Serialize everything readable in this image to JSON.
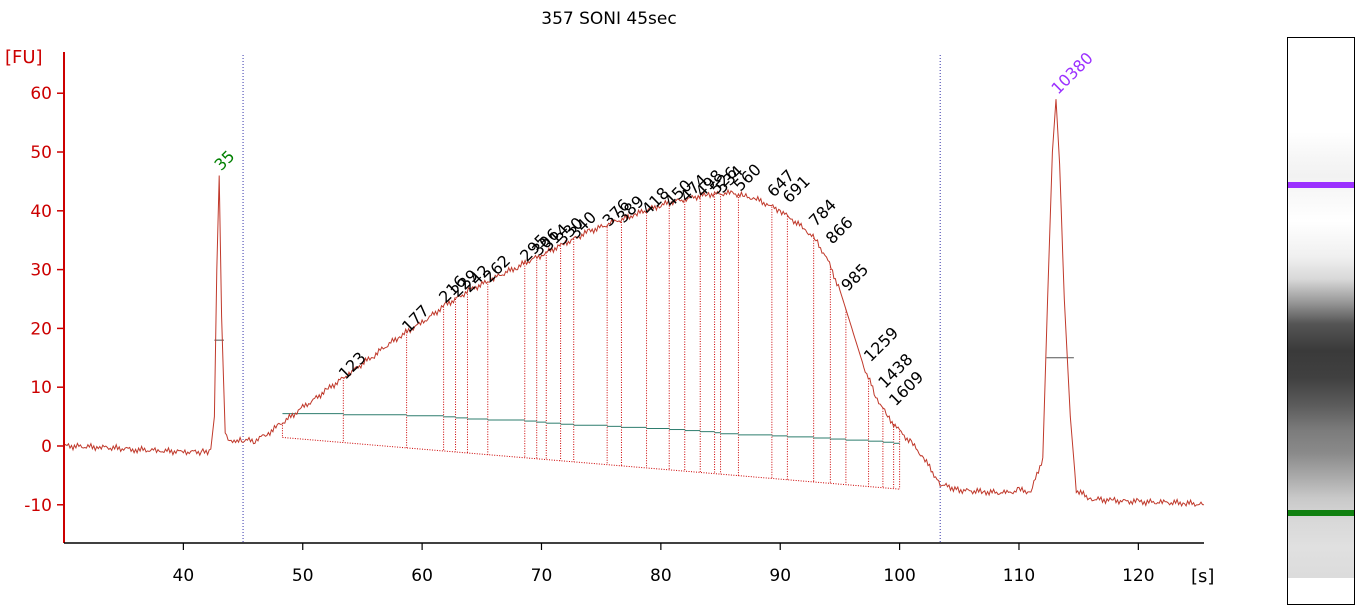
{
  "chart_data": {
    "type": "line",
    "title": "357 SONI 45sec",
    "ylabel": "[FU]",
    "xlabel": "[s]",
    "xlim": [
      30,
      125.5
    ],
    "ylim": [
      -16.5,
      66.5
    ],
    "x_ticks": [
      40,
      50,
      60,
      70,
      80,
      90,
      100,
      110,
      120
    ],
    "y_ticks": [
      -10,
      0,
      10,
      20,
      30,
      40,
      50,
      60
    ],
    "grid": false,
    "colors": {
      "trace": "#c0392b",
      "axis": "#cc0000",
      "marker_lower": "#008000",
      "marker_upper": "#9b30ff",
      "region_line": "#cc0000",
      "region_base": "#2e7d6e",
      "peak_label": "#000000",
      "reference_line": "#3333aa"
    },
    "reference_lines_x": [
      45,
      103.4
    ],
    "series": [
      {
        "x": [
          30,
          33,
          36,
          38,
          40,
          41.5,
          42.3,
          42.6,
          42.8,
          43.0,
          43.2,
          43.5,
          44.0,
          44.5,
          45.0,
          46,
          47,
          48,
          50,
          52,
          54,
          56,
          58,
          60,
          62,
          64,
          66,
          68,
          70,
          72,
          74,
          76,
          78,
          80,
          82,
          84,
          86,
          87,
          88,
          89,
          90,
          91,
          92,
          93,
          94,
          95,
          96,
          97,
          98,
          99,
          100,
          101,
          102,
          103.4,
          105,
          107,
          109,
          110,
          111,
          112,
          112.4,
          112.8,
          113.1,
          113.4,
          113.8,
          114.3,
          114.8,
          116,
          118,
          120,
          122,
          124,
          125.5
        ],
        "y": [
          0,
          -0.2,
          -0.6,
          -0.8,
          -1.0,
          -1.0,
          -0.8,
          5,
          30,
          46,
          22,
          2,
          0.5,
          0.8,
          0.9,
          1.0,
          2.0,
          3.5,
          6.5,
          9.5,
          12.5,
          15.5,
          18.5,
          21,
          24,
          26.5,
          28.5,
          30.5,
          32.5,
          34.5,
          36.5,
          38,
          39.5,
          41,
          42,
          42.8,
          43,
          42.5,
          42,
          41,
          40,
          38.5,
          37,
          35,
          31.5,
          26.5,
          20,
          13.5,
          8.5,
          5,
          2.5,
          0.5,
          -2,
          -6.5,
          -7.5,
          -7.8,
          -8.0,
          -7.5,
          -7.8,
          -2,
          25,
          50,
          59,
          48,
          25,
          5,
          -7.5,
          -9.0,
          -9.3,
          -9.5,
          -9.6,
          -9.7,
          -10.0
        ]
      }
    ],
    "lower_marker": {
      "label": "35",
      "x": 43.0,
      "y": 46
    },
    "upper_marker": {
      "label": "10380",
      "x": 113.1,
      "y": 59
    },
    "peaks": [
      {
        "label": "123",
        "x": 53.4,
        "y": 10.5
      },
      {
        "label": "177",
        "x": 58.7,
        "y": 18.5
      },
      {
        "label": "216",
        "x": 61.8,
        "y": 23.5
      },
      {
        "label": "229",
        "x": 62.8,
        "y": 24.5
      },
      {
        "label": "242",
        "x": 63.8,
        "y": 25.3
      },
      {
        "label": "262",
        "x": 65.5,
        "y": 27
      },
      {
        "label": "295",
        "x": 68.6,
        "y": 30.5
      },
      {
        "label": "306",
        "x": 69.6,
        "y": 31.5
      },
      {
        "label": "314",
        "x": 70.4,
        "y": 32.3
      },
      {
        "label": "330",
        "x": 71.6,
        "y": 33.4
      },
      {
        "label": "340",
        "x": 72.7,
        "y": 34.4
      },
      {
        "label": "376",
        "x": 75.5,
        "y": 36.5
      },
      {
        "label": "389",
        "x": 76.7,
        "y": 37.1
      },
      {
        "label": "418",
        "x": 78.8,
        "y": 38.5
      },
      {
        "label": "450",
        "x": 80.7,
        "y": 39.8
      },
      {
        "label": "474",
        "x": 82.0,
        "y": 40.7
      },
      {
        "label": "498",
        "x": 83.3,
        "y": 41.5
      },
      {
        "label": "526",
        "x": 84.5,
        "y": 42.0
      },
      {
        "label": "534",
        "x": 85.0,
        "y": 42.2
      },
      {
        "label": "560",
        "x": 86.5,
        "y": 42.5
      },
      {
        "label": "647",
        "x": 89.3,
        "y": 41.5
      },
      {
        "label": "691",
        "x": 90.6,
        "y": 40.5
      },
      {
        "label": "784",
        "x": 92.8,
        "y": 36.5
      },
      {
        "label": "866",
        "x": 94.2,
        "y": 33.5
      },
      {
        "label": "985",
        "x": 95.5,
        "y": 25.5
      },
      {
        "label": "1259",
        "x": 97.4,
        "y": 13.5
      },
      {
        "label": "1438",
        "x": 98.6,
        "y": 9
      },
      {
        "label": "1609",
        "x": 99.5,
        "y": 6
      }
    ]
  }
}
